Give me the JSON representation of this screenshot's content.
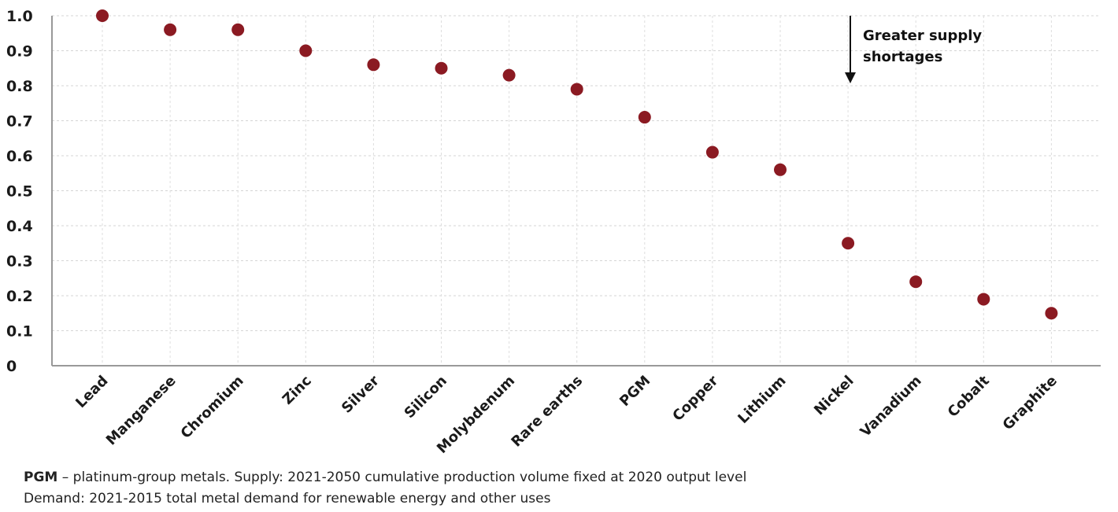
{
  "chart_data": {
    "type": "scatter",
    "categories": [
      "Lead",
      "Manganese",
      "Chromium",
      "Zinc",
      "Silver",
      "Silicon",
      "Molybdenum",
      "Rare earths",
      "PGM",
      "Copper",
      "Lithium",
      "Nickel",
      "Vanadium",
      "Cobalt",
      "Graphite"
    ],
    "values": [
      1.0,
      0.96,
      0.96,
      0.9,
      0.86,
      0.85,
      0.83,
      0.79,
      0.71,
      0.61,
      0.56,
      0.35,
      0.24,
      0.19,
      0.15
    ],
    "ylim": [
      0,
      1.0
    ],
    "yticks": [
      0,
      0.1,
      0.2,
      0.3,
      0.4,
      0.5,
      0.6,
      0.7,
      0.8,
      0.9,
      1.0
    ],
    "ytick_labels": [
      "0",
      "0.1",
      "0.2",
      "0.3",
      "0.4",
      "0.5",
      "0.6",
      "0.7",
      "0.8",
      "0.9",
      "1.0"
    ],
    "grid": true,
    "marker_color": "#8b1a22",
    "annotation": {
      "line1": "Greater supply",
      "line2": "shortages",
      "arrow": "down-arrow-icon"
    }
  },
  "footnote": {
    "line1_bold": "PGM",
    "line1_rest": " – platinum-group metals. Supply: 2021-2050 cumulative production volume fixed at 2020 output level",
    "line2": "Demand: 2021-2015 total metal demand for renewable energy and other uses"
  }
}
